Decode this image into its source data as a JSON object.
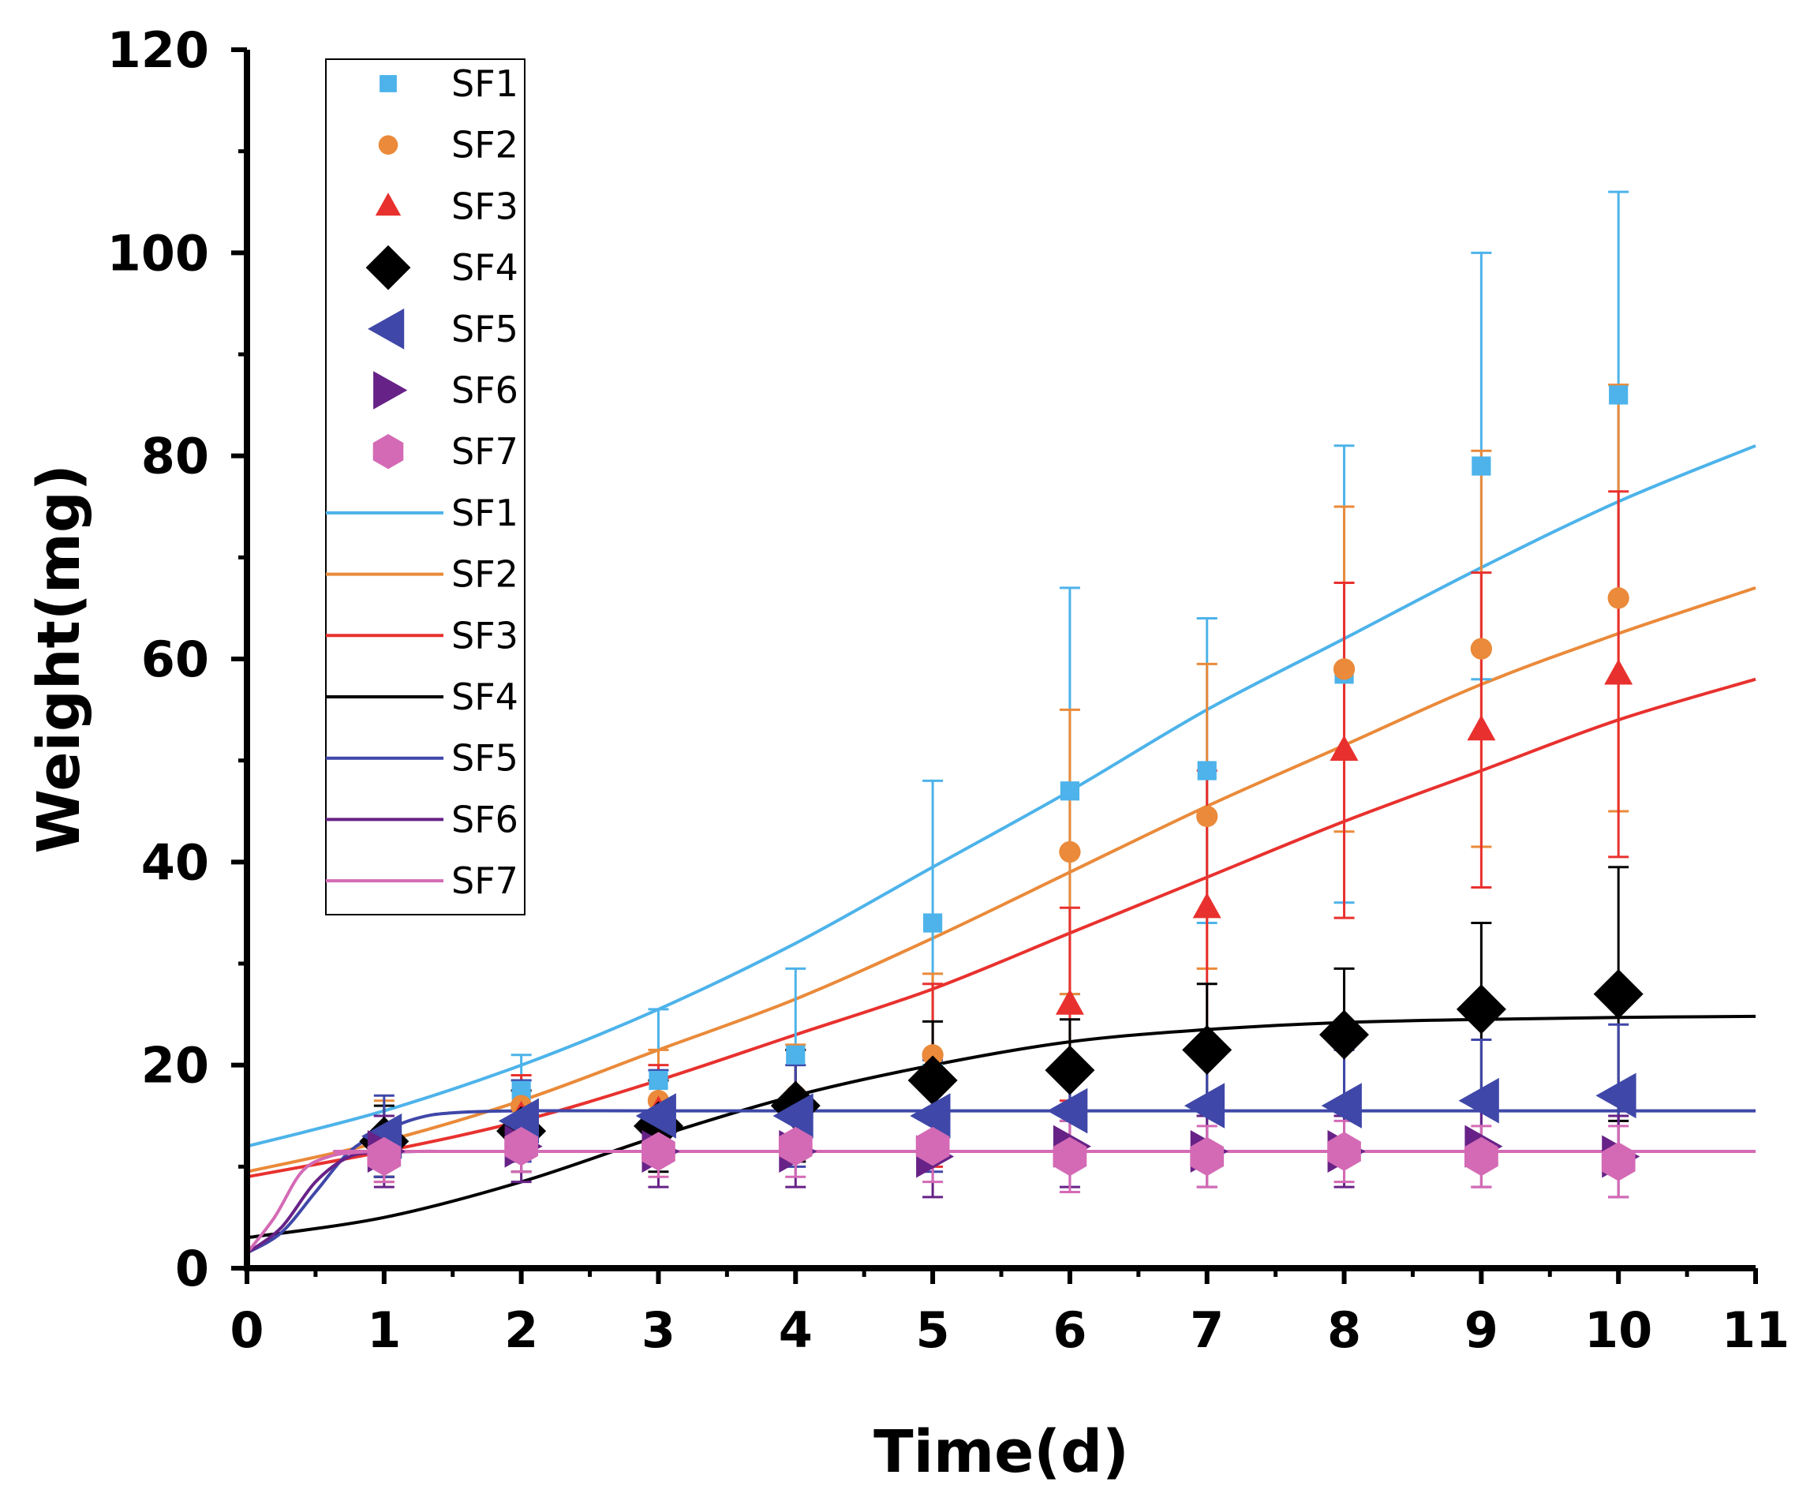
{
  "chart_data": {
    "type": "scatter",
    "title": "",
    "xlabel": "Time(d)",
    "ylabel": "Weight(mg)",
    "xlim": [
      0,
      11
    ],
    "ylim": [
      0,
      120
    ],
    "x_ticks": [
      0,
      1,
      2,
      3,
      4,
      5,
      6,
      7,
      8,
      9,
      10,
      11
    ],
    "x_tick_labels": [
      "0",
      "1",
      "2",
      "3",
      "4",
      "5",
      "6",
      "7",
      "8",
      "9",
      "10",
      "11"
    ],
    "y_ticks": [
      0,
      20,
      40,
      60,
      80,
      100,
      120
    ],
    "y_tick_labels": [
      "0",
      "20",
      "40",
      "60",
      "80",
      "100",
      "120"
    ],
    "legend_position": "top-left",
    "series": [
      {
        "name": "SF1",
        "marker": "square",
        "color": "#4db3ea",
        "x": [
          1,
          2,
          3,
          4,
          5,
          6,
          7,
          8,
          9,
          10
        ],
        "values": [
          12.0,
          17.5,
          18.5,
          21.0,
          34.0,
          47.0,
          49.0,
          58.5,
          79.0,
          86.0
        ],
        "errors": [
          3.0,
          3.5,
          7.0,
          8.5,
          14.0,
          20.0,
          15.0,
          22.5,
          21.0,
          20.0
        ]
      },
      {
        "name": "SF2",
        "marker": "circle",
        "color": "#ea8a3a",
        "x": [
          1,
          2,
          3,
          4,
          5,
          6,
          7,
          8,
          9,
          10
        ],
        "values": [
          12.5,
          16.0,
          16.5,
          17.0,
          21.0,
          41.0,
          44.5,
          59.0,
          61.0,
          66.0
        ],
        "errors": [
          4.0,
          3.0,
          5.0,
          5.0,
          8.0,
          14.0,
          15.0,
          16.0,
          19.5,
          21.0
        ]
      },
      {
        "name": "SF3",
        "marker": "triangle-up",
        "color": "#e8312e",
        "x": [
          1,
          2,
          3,
          4,
          5,
          6,
          7,
          8,
          9,
          10
        ],
        "values": [
          12.0,
          15.0,
          15.5,
          16.5,
          19.0,
          26.0,
          35.5,
          51.0,
          53.0,
          58.5
        ],
        "errors": [
          3.0,
          4.0,
          4.5,
          5.0,
          9.0,
          9.5,
          13.5,
          16.5,
          15.5,
          18.0
        ]
      },
      {
        "name": "SF4",
        "marker": "diamond",
        "color": "#000000",
        "x": [
          1,
          2,
          3,
          4,
          5,
          6,
          7,
          8,
          9,
          10
        ],
        "values": [
          12.5,
          13.5,
          14.0,
          16.0,
          18.5,
          19.5,
          21.5,
          23.0,
          25.5,
          27.0
        ],
        "errors": [
          3.5,
          4.0,
          4.5,
          5.5,
          5.8,
          5.0,
          6.5,
          6.5,
          8.5,
          12.5
        ]
      },
      {
        "name": "SF5",
        "marker": "triangle-left",
        "color": "#3f47a8",
        "x": [
          1,
          2,
          3,
          4,
          5,
          6,
          7,
          8,
          9,
          10
        ],
        "values": [
          13.0,
          14.5,
          15.0,
          15.0,
          15.0,
          15.5,
          16.0,
          16.0,
          16.5,
          17.0
        ],
        "errors": [
          4.0,
          4.0,
          4.5,
          5.0,
          5.5,
          5.0,
          5.0,
          5.5,
          6.0,
          7.0
        ]
      },
      {
        "name": "SF6",
        "marker": "triangle-right",
        "color": "#672287",
        "x": [
          1,
          2,
          3,
          4,
          5,
          6,
          7,
          8,
          9,
          10
        ],
        "values": [
          11.5,
          12.0,
          11.5,
          11.5,
          11.0,
          12.0,
          11.5,
          11.5,
          12.0,
          11.0
        ],
        "errors": [
          3.5,
          3.5,
          3.5,
          3.5,
          4.0,
          4.0,
          3.5,
          3.5,
          4.0,
          4.0
        ]
      },
      {
        "name": "SF7",
        "marker": "hexagon",
        "color": "#d46ab5",
        "x": [
          1,
          2,
          3,
          4,
          5,
          6,
          7,
          8,
          9,
          10
        ],
        "values": [
          11.0,
          12.0,
          11.5,
          12.0,
          12.0,
          11.0,
          11.0,
          11.5,
          11.0,
          10.5
        ],
        "errors": [
          2.5,
          2.5,
          2.5,
          3.0,
          3.5,
          3.5,
          3.0,
          3.0,
          3.0,
          3.5
        ]
      }
    ],
    "fit_curves": [
      {
        "name": "SF1",
        "color": "#4db3ea",
        "x": [
          0,
          1,
          2,
          3,
          4,
          5,
          6,
          7,
          8,
          9,
          10,
          11
        ],
        "values": [
          12.0,
          15.5,
          20.0,
          25.5,
          32.0,
          39.5,
          47.0,
          55.0,
          62.0,
          69.0,
          75.5,
          81.0
        ]
      },
      {
        "name": "SF2",
        "color": "#ea8a3a",
        "x": [
          0,
          1,
          2,
          3,
          4,
          5,
          6,
          7,
          8,
          9,
          10,
          11
        ],
        "values": [
          9.5,
          12.5,
          16.5,
          21.5,
          26.5,
          32.5,
          39.0,
          45.5,
          51.5,
          57.5,
          62.5,
          67.0
        ]
      },
      {
        "name": "SF3",
        "color": "#e8312e",
        "x": [
          0,
          1,
          2,
          3,
          4,
          5,
          6,
          7,
          8,
          9,
          10,
          11
        ],
        "values": [
          9.0,
          11.5,
          14.5,
          18.5,
          23.0,
          27.5,
          33.0,
          38.5,
          44.0,
          49.0,
          54.0,
          58.0
        ]
      },
      {
        "name": "SF4",
        "color": "#000000",
        "x": [
          0,
          1,
          2,
          3,
          4,
          5,
          6,
          7,
          8,
          9,
          10,
          11
        ],
        "values": [
          3.0,
          5.0,
          8.5,
          13.0,
          17.0,
          20.0,
          22.3,
          23.5,
          24.2,
          24.5,
          24.7,
          24.8
        ]
      },
      {
        "name": "SF5",
        "color": "#3f47a8",
        "x": [
          0,
          0.25,
          0.5,
          0.75,
          1,
          1.25,
          1.5,
          2,
          3,
          11
        ],
        "values": [
          1.5,
          3.5,
          7.5,
          11.5,
          13.5,
          14.8,
          15.3,
          15.5,
          15.5,
          15.5
        ]
      },
      {
        "name": "SF6",
        "color": "#672287",
        "x": [
          0,
          0.25,
          0.5,
          0.75,
          1,
          1.25,
          1.5,
          2,
          11
        ],
        "values": [
          1.5,
          4.0,
          8.5,
          11.0,
          11.4,
          11.5,
          11.5,
          11.5,
          11.5
        ]
      },
      {
        "name": "SF7",
        "color": "#d46ab5",
        "x": [
          0,
          0.2,
          0.4,
          0.6,
          0.8,
          1,
          1.5,
          11
        ],
        "values": [
          1.5,
          5.0,
          9.5,
          11.0,
          11.4,
          11.5,
          11.5,
          11.5
        ]
      }
    ]
  }
}
